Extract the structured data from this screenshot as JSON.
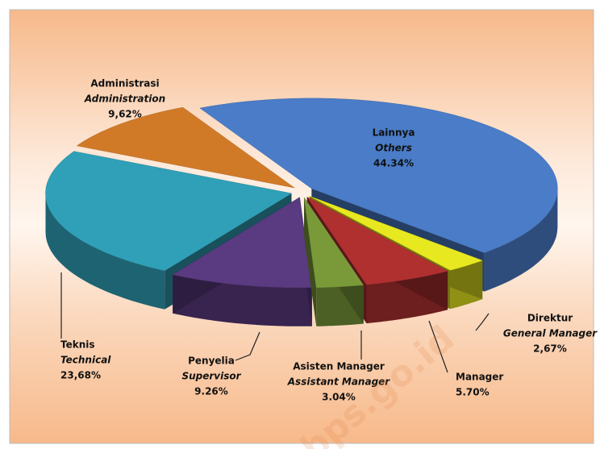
{
  "chart_data": {
    "type": "pie",
    "categories": [
      "Lainnya",
      "Direktur",
      "Manager",
      "Asisten Manager",
      "Penyelia",
      "Teknis",
      "Administrasi"
    ],
    "subcategories": [
      "Others",
      "General Manager",
      null,
      "Assistant Manager",
      "Supervisor",
      "Technical",
      "Administration"
    ],
    "values": [
      44.34,
      2.67,
      5.7,
      3.04,
      9.26,
      23.68,
      9.62
    ],
    "value_labels": [
      "44.34%",
      "2,67%",
      "5.70%",
      "3.04%",
      "9.26%",
      "23,68%",
      "9,62%"
    ],
    "colors": [
      "#4a7cc8",
      "#e8e820",
      "#b03030",
      "#7a9a3a",
      "#5a3a80",
      "#30a0b8",
      "#d07a28"
    ],
    "watermark": "bps.go.id"
  }
}
